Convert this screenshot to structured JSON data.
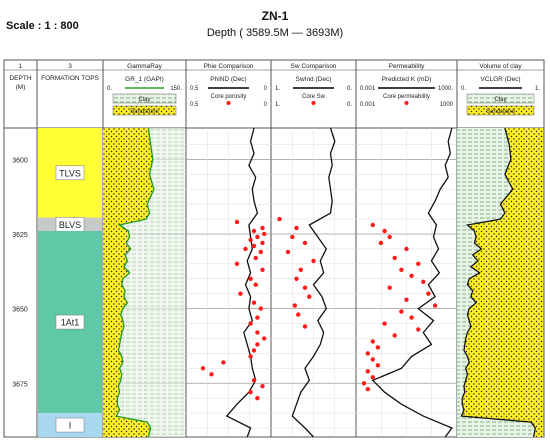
{
  "header": {
    "scale_label": "Scale : 1 : 800",
    "well_name": "ZN-1",
    "depth_range": "Depth ( 3589.5M — 3693M)"
  },
  "chart_data": {
    "type": "line",
    "depth_axis": {
      "min": 3589.5,
      "max": 3693,
      "ticks": [
        3600,
        3625,
        3650,
        3675
      ]
    },
    "tracks": [
      {
        "number": "1",
        "title": "",
        "headers": [
          "DEPTH",
          "(M)"
        ]
      },
      {
        "number": "3",
        "title": "",
        "headers": [
          "FORMATION TOPS"
        ]
      },
      {
        "number": "",
        "title": "GammaRay",
        "curve": "GR_1 (GAPI)",
        "range": [
          "0.",
          "150."
        ],
        "legend": [
          "Clay",
          "Sandstone"
        ]
      },
      {
        "number": "",
        "title": "Phie Comparison",
        "curve": "PhiND (Dec)",
        "range": [
          "0.5",
          "0"
        ],
        "points_label": "Core porosity",
        "points_range": [
          "0.5",
          "0"
        ]
      },
      {
        "number": "",
        "title": "Sw Comparison",
        "curve": "SwInd (Dec)",
        "range": [
          "1.",
          "0."
        ],
        "points_label": "Core Sw",
        "points_range": [
          "1.",
          "0."
        ]
      },
      {
        "number": "",
        "title": "Permeability",
        "curve": "Predicted K (mD)",
        "range": [
          "0.001",
          "1000."
        ],
        "points_label": "Core permeability",
        "points_range": [
          "0.001",
          "1000"
        ]
      },
      {
        "number": "",
        "title": "Volume of clay",
        "curve": "VCLGR (Dec)",
        "range": [
          "0.",
          "1."
        ],
        "legend": [
          "Clay",
          "Sandstone"
        ]
      }
    ],
    "formations": [
      {
        "name": "TLVS",
        "top": 3589.5,
        "base": 3619.5,
        "color": "#ffff33"
      },
      {
        "name": "BLVS",
        "top": 3619.5,
        "base": 3624.0,
        "color": "#c9c9c9"
      },
      {
        "name": "1At1",
        "top": 3624.0,
        "base": 3685.0,
        "color": "#5fc9a3"
      },
      {
        "name": "I",
        "top": 3685.0,
        "base": 3693.0,
        "color": "#a8d8f0"
      }
    ],
    "gamma_ray": {
      "x_range": [
        0,
        150
      ],
      "depth": [
        3589.5,
        3595,
        3600,
        3605,
        3610,
        3615,
        3618,
        3620,
        3622,
        3624,
        3626,
        3628,
        3630,
        3632,
        3634,
        3636,
        3638,
        3640,
        3642,
        3644,
        3646,
        3648,
        3650,
        3652,
        3654,
        3656,
        3658,
        3660,
        3662,
        3664,
        3666,
        3668,
        3670,
        3672,
        3674,
        3676,
        3678,
        3680,
        3682,
        3684,
        3686,
        3688,
        3690,
        3693
      ],
      "values": [
        82,
        86,
        90,
        84,
        92,
        80,
        84,
        78,
        30,
        46,
        48,
        42,
        50,
        40,
        44,
        38,
        48,
        36,
        34,
        40,
        38,
        44,
        36,
        32,
        36,
        38,
        34,
        32,
        30,
        28,
        34,
        36,
        30,
        34,
        32,
        28,
        30,
        26,
        26,
        30,
        24,
        80,
        86,
        82
      ]
    },
    "vclay": {
      "x_range": [
        0,
        1
      ],
      "depth": [
        3589.5,
        3595,
        3600,
        3605,
        3610,
        3615,
        3618,
        3620,
        3622,
        3624,
        3626,
        3628,
        3630,
        3632,
        3634,
        3636,
        3638,
        3640,
        3642,
        3644,
        3646,
        3648,
        3650,
        3652,
        3654,
        3656,
        3658,
        3660,
        3662,
        3664,
        3666,
        3668,
        3670,
        3672,
        3674,
        3676,
        3678,
        3680,
        3682,
        3684,
        3686,
        3688,
        3690,
        3693
      ],
      "values": [
        0.55,
        0.6,
        0.62,
        0.55,
        0.64,
        0.5,
        0.55,
        0.5,
        0.12,
        0.2,
        0.22,
        0.2,
        0.28,
        0.18,
        0.24,
        0.16,
        0.26,
        0.14,
        0.12,
        0.18,
        0.16,
        0.22,
        0.14,
        0.12,
        0.14,
        0.16,
        0.12,
        0.1,
        0.09,
        0.08,
        0.12,
        0.14,
        0.1,
        0.12,
        0.1,
        0.08,
        0.09,
        0.06,
        0.06,
        0.08,
        0.05,
        0.85,
        0.9,
        0.88
      ]
    },
    "phi_nd": {
      "x_range": [
        0.5,
        0
      ],
      "depth": [
        3589.5,
        3594,
        3598,
        3602,
        3606,
        3610,
        3614,
        3618,
        3622,
        3626,
        3630,
        3634,
        3638,
        3642,
        3646,
        3650,
        3654,
        3658,
        3662,
        3666,
        3670,
        3674,
        3678,
        3682,
        3686,
        3690,
        3693
      ],
      "values": [
        0.1,
        0.12,
        0.1,
        0.13,
        0.09,
        0.11,
        0.1,
        0.08,
        0.13,
        0.12,
        0.11,
        0.14,
        0.12,
        0.15,
        0.12,
        0.13,
        0.11,
        0.16,
        0.14,
        0.12,
        0.11,
        0.09,
        0.13,
        0.2,
        0.26,
        0.12,
        0.14
      ]
    },
    "core_porosity": {
      "depth": [
        3621,
        3623,
        3624,
        3625,
        3626,
        3627,
        3628,
        3629,
        3630,
        3631,
        3633,
        3635,
        3637,
        3640,
        3642,
        3645,
        3648,
        3650,
        3653,
        3655,
        3658,
        3660,
        3662,
        3664,
        3666,
        3668,
        3670,
        3672,
        3674,
        3676,
        3678,
        3680
      ],
      "values": [
        0.2,
        0.05,
        0.1,
        0.04,
        0.08,
        0.12,
        0.05,
        0.1,
        0.15,
        0.06,
        0.09,
        0.2,
        0.05,
        0.12,
        0.09,
        0.18,
        0.1,
        0.06,
        0.08,
        0.12,
        0.08,
        0.04,
        0.08,
        0.1,
        0.12,
        0.28,
        0.4,
        0.35,
        0.1,
        0.05,
        0.12,
        0.08
      ]
    },
    "sw_ind": {
      "x_range": [
        1,
        0
      ],
      "depth": [
        3589.5,
        3594,
        3598,
        3602,
        3606,
        3610,
        3614,
        3618,
        3622,
        3626,
        3630,
        3634,
        3638,
        3642,
        3646,
        3650,
        3654,
        3658,
        3662,
        3666,
        3670,
        3674,
        3678,
        3682,
        3686,
        3690,
        3693
      ],
      "values": [
        0.3,
        0.25,
        0.3,
        0.28,
        0.32,
        0.3,
        0.28,
        0.3,
        0.55,
        0.45,
        0.35,
        0.42,
        0.38,
        0.5,
        0.4,
        0.35,
        0.45,
        0.38,
        0.42,
        0.5,
        0.6,
        0.55,
        0.65,
        0.7,
        0.75,
        0.6,
        0.5
      ]
    },
    "core_sw": {
      "depth": [
        3620,
        3623,
        3626,
        3628,
        3631,
        3634,
        3637,
        3640,
        3643,
        3646,
        3649,
        3652,
        3656
      ],
      "values": [
        0.9,
        0.7,
        0.75,
        0.6,
        0.8,
        0.5,
        0.65,
        0.7,
        0.6,
        0.55,
        0.72,
        0.68,
        0.6
      ]
    },
    "predicted_k": {
      "x_range": [
        0.001,
        1000
      ],
      "scale": "log",
      "depth": [
        3589.5,
        3594,
        3598,
        3602,
        3606,
        3610,
        3614,
        3618,
        3622,
        3626,
        3630,
        3634,
        3638,
        3642,
        3646,
        3650,
        3654,
        3658,
        3662,
        3666,
        3670,
        3674,
        3678,
        3682,
        3686,
        3690,
        3693
      ],
      "values": [
        500,
        300,
        400,
        200,
        300,
        100,
        50,
        20,
        60,
        40,
        80,
        30,
        90,
        20,
        50,
        5,
        40,
        10,
        30,
        2,
        0.5,
        0.01,
        0.05,
        0.5,
        10,
        500,
        200
      ]
    },
    "core_permeability": {
      "depth": [
        3622,
        3624,
        3626,
        3628,
        3630,
        3633,
        3635,
        3637,
        3639,
        3641,
        3643,
        3645,
        3647,
        3649,
        3651,
        3653,
        3655,
        3657,
        3659,
        3661,
        3663,
        3665,
        3667,
        3669,
        3671,
        3673,
        3675,
        3677
      ],
      "values": [
        0.01,
        0.05,
        0.1,
        0.03,
        1,
        0.2,
        5,
        0.5,
        2,
        10,
        0.1,
        20,
        1,
        50,
        0.5,
        2,
        0.05,
        5,
        0.2,
        0.01,
        0.02,
        0.005,
        0.01,
        0.02,
        0.005,
        0.01,
        0.003,
        0.005
      ]
    }
  }
}
